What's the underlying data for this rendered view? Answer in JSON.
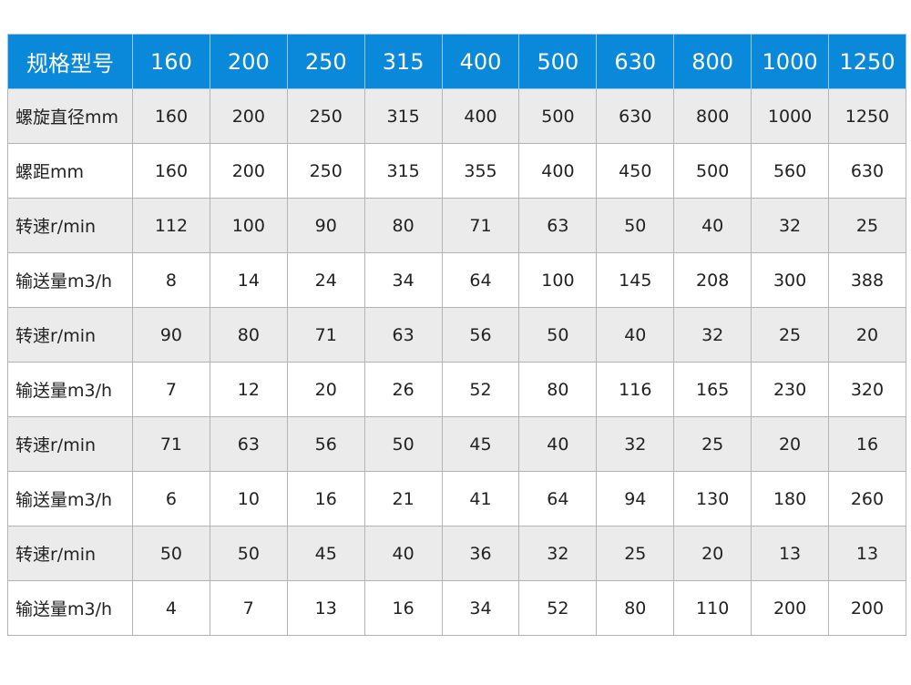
{
  "table": {
    "header": [
      "规格型号",
      "160",
      "200",
      "250",
      "315",
      "400",
      "500",
      "630",
      "800",
      "1000",
      "1250"
    ],
    "rows": [
      {
        "label": "螺旋直径mm",
        "values": [
          "160",
          "200",
          "250",
          "315",
          "400",
          "500",
          "630",
          "800",
          "1000",
          "1250"
        ]
      },
      {
        "label": "螺距mm",
        "values": [
          "160",
          "200",
          "250",
          "315",
          "355",
          "400",
          "450",
          "500",
          "560",
          "630"
        ]
      },
      {
        "label": "转速r/min",
        "values": [
          "112",
          "100",
          "90",
          "80",
          "71",
          "63",
          "50",
          "40",
          "32",
          "25"
        ]
      },
      {
        "label": "输送量m3/h",
        "values": [
          "8",
          "14",
          "24",
          "34",
          "64",
          "100",
          "145",
          "208",
          "300",
          "388"
        ]
      },
      {
        "label": "转速r/min",
        "values": [
          "90",
          "80",
          "71",
          "63",
          "56",
          "50",
          "40",
          "32",
          "25",
          "20"
        ]
      },
      {
        "label": "输送量m3/h",
        "values": [
          "7",
          "12",
          "20",
          "26",
          "52",
          "80",
          "116",
          "165",
          "230",
          "320"
        ]
      },
      {
        "label": "转速r/min",
        "values": [
          "71",
          "63",
          "56",
          "50",
          "45",
          "40",
          "32",
          "25",
          "20",
          "16"
        ]
      },
      {
        "label": "输送量m3/h",
        "values": [
          "6",
          "10",
          "16",
          "21",
          "41",
          "64",
          "94",
          "130",
          "180",
          "260"
        ]
      },
      {
        "label": "转速r/min",
        "values": [
          "50",
          "50",
          "45",
          "40",
          "36",
          "32",
          "25",
          "20",
          "13",
          "13"
        ]
      },
      {
        "label": "输送量m3/h",
        "values": [
          "4",
          "7",
          "13",
          "16",
          "34",
          "52",
          "80",
          "110",
          "200",
          "200"
        ]
      }
    ]
  },
  "colors": {
    "header_bg": "#0a88d9",
    "row_alt_bg": "#ebebeb",
    "border": "#b4b4b4"
  }
}
